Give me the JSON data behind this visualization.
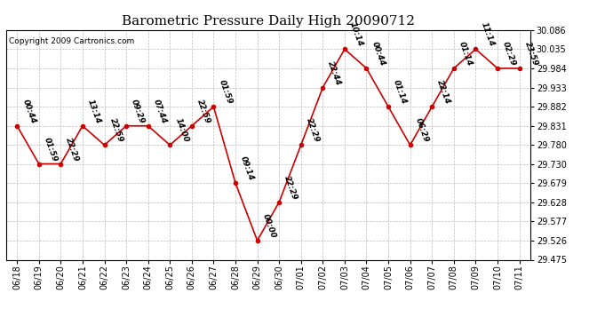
{
  "title": "Barometric Pressure Daily High 20090712",
  "copyright": "Copyright 2009 Cartronics.com",
  "x_labels": [
    "06/18",
    "06/19",
    "06/20",
    "06/21",
    "06/22",
    "06/23",
    "06/24",
    "06/25",
    "06/26",
    "06/27",
    "06/28",
    "06/29",
    "06/30",
    "07/01",
    "07/02",
    "07/03",
    "07/04",
    "07/05",
    "07/06",
    "07/07",
    "07/08",
    "07/09",
    "07/10",
    "07/11"
  ],
  "y_values": [
    29.831,
    29.73,
    29.73,
    29.831,
    29.78,
    29.831,
    29.831,
    29.78,
    29.831,
    29.882,
    29.679,
    29.526,
    29.628,
    29.78,
    29.933,
    30.035,
    29.984,
    29.882,
    29.78,
    29.882,
    29.984,
    30.035,
    29.984,
    29.984
  ],
  "point_labels": [
    "00:44",
    "01:59",
    "22:29",
    "13:14",
    "22:59",
    "09:29",
    "07:44",
    "14:00",
    "22:59",
    "01:59",
    "09:14",
    "00:00",
    "22:29",
    "22:29",
    "22:44",
    "10:14",
    "00:44",
    "01:14",
    "06:29",
    "22:14",
    "01:14",
    "11:14",
    "02:29",
    "23:59"
  ],
  "y_min": 29.475,
  "y_max": 30.086,
  "y_ticks": [
    29.475,
    29.526,
    29.577,
    29.628,
    29.679,
    29.73,
    29.78,
    29.831,
    29.882,
    29.933,
    29.984,
    30.035,
    30.086
  ],
  "line_color": "#cc0000",
  "marker_color": "#cc0000",
  "bg_color": "#ffffff",
  "grid_color": "#aaaaaa",
  "title_fontsize": 11,
  "label_fontsize": 6.5,
  "tick_fontsize": 7,
  "copyright_fontsize": 6.5
}
